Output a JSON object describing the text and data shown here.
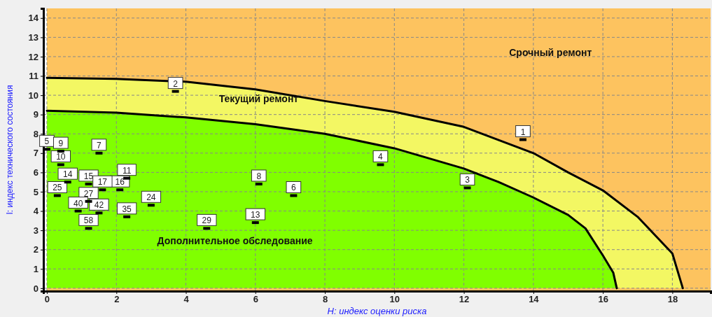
{
  "chart_data": {
    "type": "scatter",
    "xlabel": "H: индекс оценки риска",
    "ylabel": "I: индекс технического состояния",
    "xlim": [
      -0.1,
      19.1
    ],
    "ylim": [
      -0.15,
      14.5
    ],
    "xticks": [
      0,
      2,
      4,
      6,
      8,
      10,
      12,
      14,
      16,
      18
    ],
    "yticks": [
      0,
      1,
      2,
      3,
      4,
      5,
      6,
      7,
      8,
      9,
      10,
      11,
      12,
      13,
      14
    ],
    "grid": true,
    "legend": false,
    "bands": [
      {
        "axis": "x",
        "from": 0,
        "to": 19.1,
        "color": "#fdc35f",
        "label": "Срочный ремонт"
      }
    ],
    "series": [
      {
        "type": "area",
        "name": "Текущий ремонт",
        "color": "#f3f763",
        "x": [
          0,
          2,
          4,
          6,
          8,
          10,
          12,
          14,
          15,
          16,
          17,
          18,
          18.3
        ],
        "values": [
          10.9,
          10.85,
          10.7,
          10.3,
          9.7,
          9.14,
          8.36,
          7.0,
          6.0,
          5.07,
          3.7,
          1.8,
          0
        ]
      },
      {
        "type": "area",
        "name": "Дополнительное обследование",
        "color": "#80ff00",
        "x": [
          0,
          2,
          4,
          6,
          8,
          10,
          12,
          13,
          14,
          15,
          15.5,
          16,
          16.3,
          16.4
        ],
        "values": [
          9.2,
          9.1,
          8.85,
          8.5,
          8.0,
          7.25,
          6.2,
          5.5,
          4.7,
          3.8,
          3.1,
          1.7,
          0.8,
          0
        ]
      },
      {
        "color": "#000000",
        "marker": "square",
        "x": [
          13.7,
          3.7,
          12.1,
          9.6,
          0,
          7.1,
          1.5,
          6.1,
          0.4,
          0.4,
          2.3,
          6,
          0.6,
          1.2,
          2.1,
          1.6,
          3,
          0.3,
          1.2,
          4.6,
          2.3,
          0.9,
          1.5,
          1.2
        ],
        "values": [
          7.7,
          10.2,
          5.2,
          6.4,
          7.2,
          4.8,
          7,
          5.4,
          7.1,
          6.4,
          5.7,
          3.4,
          5.5,
          5.4,
          5.1,
          5.1,
          4.3,
          4.8,
          4.5,
          3.1,
          3.7,
          4,
          3.9,
          3.1
        ]
      }
    ],
    "annotations": [
      {
        "text": "1",
        "x": 13.7,
        "y": 7.7
      },
      {
        "text": "2",
        "x": 3.7,
        "y": 10.2
      },
      {
        "text": "3",
        "x": 12.1,
        "y": 5.2
      },
      {
        "text": "4",
        "x": 9.6,
        "y": 6.4
      },
      {
        "text": "5",
        "x": 0,
        "y": 7.2
      },
      {
        "text": "6",
        "x": 7.1,
        "y": 4.8
      },
      {
        "text": "7",
        "x": 1.5,
        "y": 7
      },
      {
        "text": "8",
        "x": 6.1,
        "y": 5.4
      },
      {
        "text": "9",
        "x": 0.4,
        "y": 7.1
      },
      {
        "text": "10",
        "x": 0.4,
        "y": 6.4
      },
      {
        "text": "11",
        "x": 2.3,
        "y": 5.7
      },
      {
        "text": "13",
        "x": 6,
        "y": 3.4
      },
      {
        "text": "14",
        "x": 0.6,
        "y": 5.5
      },
      {
        "text": "15",
        "x": 1.2,
        "y": 5.4
      },
      {
        "text": "16",
        "x": 2.1,
        "y": 5.1
      },
      {
        "text": "17",
        "x": 1.6,
        "y": 5.1
      },
      {
        "text": "24",
        "x": 3,
        "y": 4.3
      },
      {
        "text": "25",
        "x": 0.3,
        "y": 4.8
      },
      {
        "text": "27",
        "x": 1.2,
        "y": 4.5
      },
      {
        "text": "29",
        "x": 4.6,
        "y": 3.1
      },
      {
        "text": "35",
        "x": 2.3,
        "y": 3.7
      },
      {
        "text": "40",
        "x": 0.9,
        "y": 4
      },
      {
        "text": "42",
        "x": 1.5,
        "y": 3.9
      },
      {
        "text": "58",
        "x": 1.2,
        "y": 3.1
      }
    ]
  }
}
